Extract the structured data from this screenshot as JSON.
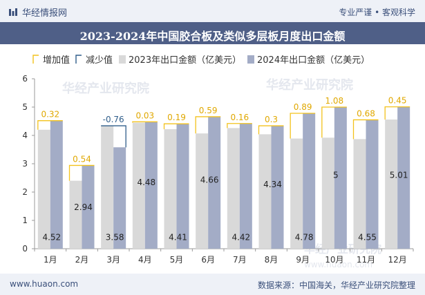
{
  "header": {
    "brand": "华经情报网",
    "slogan": "专业严谨 • 客观科学"
  },
  "footer": {
    "website": "www.huaon.com",
    "source": "数据来源：中国海关，华经产业研究院整理"
  },
  "watermarks": [
    "华经产业研究院",
    "www.huaon.com"
  ],
  "colors": {
    "increase": "#f3c21b",
    "decrease": "#2f5d8a",
    "series_2023": "#d9d9d9",
    "series_2024": "#a3acc6",
    "title_bar": "#4f5f87"
  },
  "chart_data": {
    "type": "bar",
    "title": "2023-2024年中国胶合板及类似多层板月度出口金额",
    "categories": [
      "1月",
      "2月",
      "3月",
      "4月",
      "5月",
      "6月",
      "7月",
      "8月",
      "9月",
      "10月",
      "11月",
      "12月"
    ],
    "series": [
      {
        "name": "2023年出口金额（亿美元）",
        "values": [
          4.2,
          2.4,
          4.34,
          4.45,
          4.22,
          4.07,
          4.26,
          4.04,
          3.89,
          3.92,
          3.87,
          4.56
        ]
      },
      {
        "name": "2024年出口金额（亿美元）",
        "values": [
          4.52,
          2.94,
          3.58,
          4.48,
          4.41,
          4.66,
          4.42,
          4.34,
          4.78,
          5,
          4.55,
          5.01
        ]
      }
    ],
    "change": {
      "values": [
        0.32,
        0.54,
        -0.76,
        0.03,
        0.19,
        0.59,
        0.16,
        0.3,
        0.89,
        1.08,
        0.68,
        0.45
      ],
      "labels": [
        "0.32",
        "0.54",
        "-0.76",
        "0.03",
        "0.19",
        "0.59",
        "0.16",
        "0.3",
        "0.89",
        "1.08",
        "0.68",
        "0.45"
      ]
    },
    "value_labels_2024": [
      "4.52",
      "2.94",
      "3.58",
      "4.48",
      "4.41",
      "4.66",
      "4.42",
      "4.34",
      "4.78",
      "5",
      "4.55",
      "5.01"
    ],
    "legend": [
      "增加值",
      "减少值",
      "2023年出口金额（亿美元）",
      "2024年出口金额（亿美元）"
    ],
    "legend_position": "top",
    "ylim": [
      0,
      6
    ],
    "yticks": [
      "0",
      "1",
      "2",
      "3",
      "4",
      "5",
      "6"
    ],
    "grid": false
  }
}
